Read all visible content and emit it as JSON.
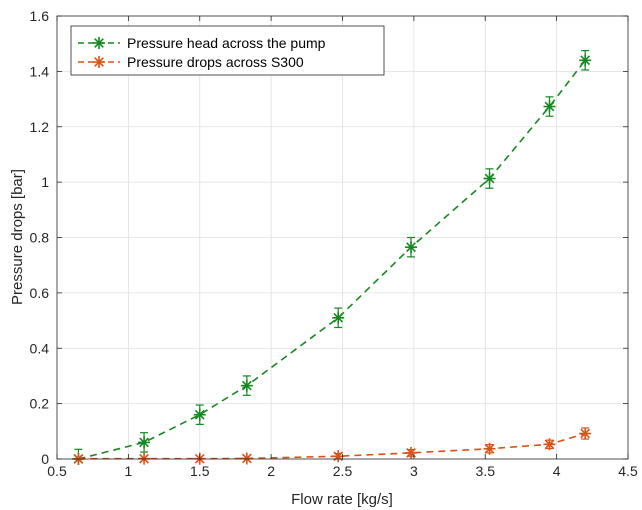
{
  "chart_data": {
    "type": "line",
    "title": "",
    "xlabel": "Flow rate [kg/s]",
    "ylabel": "Pressure drops [bar]",
    "xlim": [
      0.5,
      4.5
    ],
    "ylim": [
      0,
      1.6
    ],
    "xticks": [
      "0.5",
      "1",
      "1.5",
      "2",
      "2.5",
      "3",
      "3.5",
      "4",
      "4.5"
    ],
    "yticks": [
      "0",
      "0.2",
      "0.4",
      "0.6",
      "0.8",
      "1",
      "1.2",
      "1.4",
      "1.6"
    ],
    "grid": true,
    "legend_position": "top-left",
    "series": [
      {
        "name": "Pressure head across the pump",
        "color": "#14891f",
        "marker": "asterisk",
        "line_style": "dashed",
        "x": [
          0.65,
          1.11,
          1.5,
          1.83,
          2.47,
          2.98,
          3.53,
          3.95,
          4.2
        ],
        "y": [
          0.0,
          0.06,
          0.16,
          0.265,
          0.51,
          0.765,
          1.013,
          1.273,
          1.44
        ],
        "error": [
          0.035,
          0.035,
          0.035,
          0.035,
          0.035,
          0.035,
          0.035,
          0.035,
          0.035
        ]
      },
      {
        "name": "Pressure drops across S300",
        "color": "#d95319",
        "marker": "asterisk",
        "line_style": "dashed",
        "x": [
          0.65,
          1.11,
          1.5,
          1.83,
          2.47,
          2.98,
          3.53,
          3.95,
          4.2
        ],
        "y": [
          0.001,
          0.001,
          0.001,
          0.002,
          0.01,
          0.022,
          0.037,
          0.053,
          0.092
        ],
        "error": [
          0.0,
          0.0,
          0.0,
          0.0,
          0.01,
          0.012,
          0.015,
          0.015,
          0.02
        ]
      }
    ]
  }
}
